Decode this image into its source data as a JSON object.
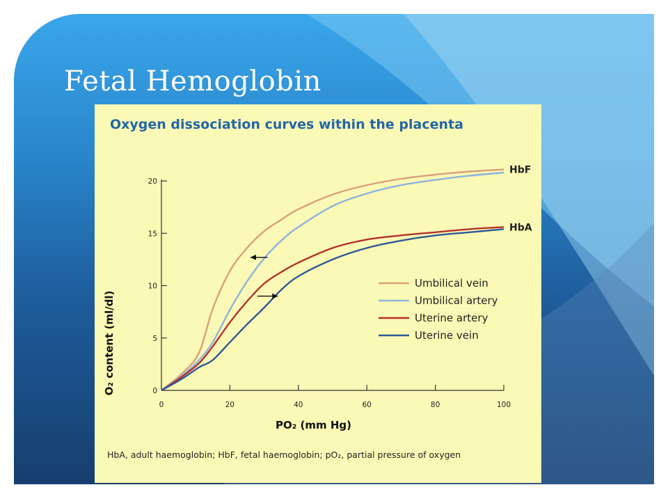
{
  "slide": {
    "title": "Fetal Hemoglobin"
  },
  "colors": {
    "umbilical_vein": "#d9a07a",
    "umbilical_artery": "#8fb2dc",
    "uterine_artery": "#b5302a",
    "uterine_vein": "#2d5a96",
    "panel": "#fbf9b6",
    "title": "#2366a8"
  },
  "chart_data": {
    "type": "line",
    "title": "Oxygen dissociation curves within the placenta",
    "xlabel": "PO₂ (mm Hg)",
    "ylabel": "O₂ content (ml/dl)",
    "xlim": [
      0,
      100
    ],
    "ylim": [
      0,
      20
    ],
    "xticks": [
      0,
      20,
      40,
      60,
      80,
      100
    ],
    "yticks": [
      0,
      5,
      10,
      15,
      20
    ],
    "grid": false,
    "legend_position": "right-center",
    "series": [
      {
        "name": "Umbilical vein",
        "color": "#d9a07a",
        "x": [
          0,
          6,
          11,
          15,
          20,
          25,
          30,
          35,
          40,
          50,
          60,
          70,
          80,
          90,
          100
        ],
        "y": [
          0,
          1.6,
          3.6,
          7.8,
          11.4,
          13.6,
          15.2,
          16.3,
          17.3,
          18.7,
          19.6,
          20.2,
          20.6,
          20.9,
          21.1
        ]
      },
      {
        "name": "Umbilical artery",
        "color": "#8fb2dc",
        "x": [
          0,
          6,
          11,
          15,
          20,
          25,
          30,
          35,
          40,
          50,
          60,
          70,
          80,
          90,
          100
        ],
        "y": [
          0,
          1.4,
          2.9,
          4.6,
          7.7,
          10.4,
          12.6,
          14.3,
          15.6,
          17.6,
          18.8,
          19.6,
          20.1,
          20.5,
          20.8
        ]
      },
      {
        "name": "Uterine artery",
        "color": "#b5302a",
        "x": [
          0,
          6,
          11,
          15,
          20,
          25,
          30,
          35,
          40,
          50,
          60,
          70,
          80,
          90,
          100
        ],
        "y": [
          0,
          1.3,
          2.6,
          4.2,
          6.5,
          8.5,
          10.2,
          11.3,
          12.2,
          13.6,
          14.4,
          14.8,
          15.1,
          15.4,
          15.6
        ]
      },
      {
        "name": "Uterine vein",
        "color": "#2d5a96",
        "x": [
          0,
          6,
          11,
          15,
          20,
          25,
          30,
          35,
          40,
          50,
          60,
          70,
          80,
          90,
          100
        ],
        "y": [
          0,
          1.1,
          2.2,
          2.9,
          4.6,
          6.3,
          7.9,
          9.6,
          10.9,
          12.5,
          13.6,
          14.3,
          14.8,
          15.1,
          15.4
        ]
      }
    ],
    "curve_labels": [
      {
        "text": "HbF",
        "x": 100,
        "y": 21.1
      },
      {
        "text": "HbA",
        "x": 100,
        "y": 15.6
      }
    ],
    "arrows": [
      {
        "direction": "left",
        "x_from": 31,
        "x_to": 26,
        "y": 12.7
      },
      {
        "direction": "right",
        "x_from": 28,
        "x_to": 34,
        "y": 9.0
      }
    ],
    "footnote": "HbA, adult haemoglobin; HbF, fetal haemoglobin; pO₂, partial pressure of oxygen"
  }
}
